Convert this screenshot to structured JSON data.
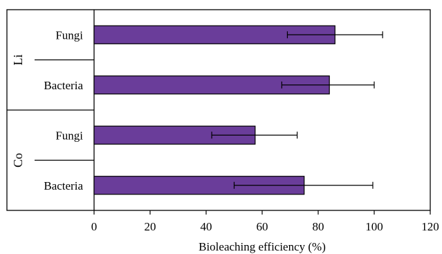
{
  "chart_data": {
    "type": "bar",
    "orientation": "horizontal",
    "title": "",
    "xlabel": "Bioleaching efficiency (%)",
    "ylabel": "",
    "xlim": [
      0,
      120
    ],
    "xticks": [
      0,
      20,
      40,
      60,
      80,
      100,
      120
    ],
    "xtick_labels": [
      "0",
      "20",
      "40",
      "60",
      "80",
      "100",
      "120"
    ],
    "grid": false,
    "legend": "none",
    "bar_color": "#6a3d9a",
    "groups": [
      {
        "name": "Li",
        "bars": [
          {
            "label": "Fungi",
            "value": 86,
            "error_low": 69,
            "error_high": 103
          },
          {
            "label": "Bacteria",
            "value": 84,
            "error_low": 67,
            "error_high": 100
          }
        ]
      },
      {
        "name": "Co",
        "bars": [
          {
            "label": "Fungi",
            "value": 57.5,
            "error_low": 42,
            "error_high": 72.5
          },
          {
            "label": "Bacteria",
            "value": 75,
            "error_low": 50,
            "error_high": 99.5
          }
        ]
      }
    ]
  }
}
